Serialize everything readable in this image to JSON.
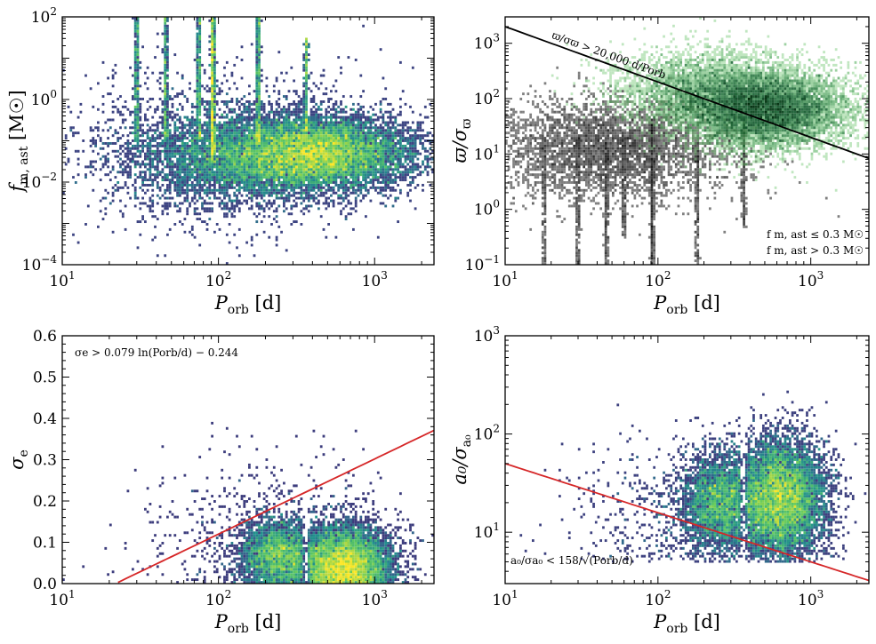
{
  "chart_data": [
    {
      "type": "heatmap",
      "xscale": "log",
      "yscale": "log",
      "xlim": [
        10,
        2400
      ],
      "ylim": [
        0.0001,
        100
      ],
      "xlabel": {
        "base": "P",
        "sub": "orb",
        "tail": " [d]"
      },
      "ylabel": {
        "base": "f",
        "sub": "m, ast",
        "tail": " [M☉]"
      },
      "xticks": [
        {
          "v": 10,
          "label": "10^1"
        },
        {
          "v": 100,
          "label": "10^2"
        },
        {
          "v": 1000,
          "label": "10^3"
        }
      ],
      "yticks": [
        {
          "v": 0.0001,
          "label": "10^-4"
        },
        {
          "v": 0.01,
          "label": "10^-2"
        },
        {
          "v": 1,
          "label": "10^0"
        },
        {
          "v": 100,
          "label": "10^2"
        }
      ],
      "colormap": "viridis",
      "density_components": [
        {
          "logx": [
            2.65,
            0.3
          ],
          "logy": [
            -1.3,
            0.45
          ],
          "n": 9000,
          "cmap": "viridis"
        },
        {
          "logx": [
            2.1,
            0.35
          ],
          "logy": [
            -1.4,
            0.55
          ],
          "n": 4000,
          "cmap": "viridis"
        },
        {
          "logx": [
            2.0,
            0.5
          ],
          "logy": [
            -1.2,
            1.0
          ],
          "n": 1500,
          "cmap": "viridis"
        }
      ],
      "spikes": [
        {
          "x": 30,
          "logy_range": [
            -1,
            2
          ],
          "n": 350
        },
        {
          "x": 46,
          "logy_range": [
            -1,
            2
          ],
          "n": 350
        },
        {
          "x": 75,
          "logy_range": [
            -1,
            2
          ],
          "n": 350
        },
        {
          "x": 92,
          "logy_range": [
            -1.5,
            2
          ],
          "n": 900
        },
        {
          "x": 180,
          "logy_range": [
            -1,
            2
          ],
          "n": 450
        },
        {
          "x": 365,
          "logy_range": [
            -1,
            1.5
          ],
          "n": 300
        }
      ],
      "lines": [],
      "annotations": []
    },
    {
      "type": "heatmap",
      "xscale": "log",
      "yscale": "log",
      "xlim": [
        10,
        2400
      ],
      "ylim": [
        0.1,
        3000
      ],
      "xlabel": {
        "base": "P",
        "sub": "orb",
        "tail": " [d]"
      },
      "ylabel": {
        "base": "ϖ/σ",
        "sub": "ϖ",
        "tail": ""
      },
      "xticks": [
        {
          "v": 10,
          "label": "10^1"
        },
        {
          "v": 100,
          "label": "10^2"
        },
        {
          "v": 1000,
          "label": "10^3"
        }
      ],
      "yticks": [
        {
          "v": 0.1,
          "label": "10^-1"
        },
        {
          "v": 1,
          "label": "10^0"
        },
        {
          "v": 10,
          "label": "10^1"
        },
        {
          "v": 100,
          "label": "10^2"
        },
        {
          "v": 1000,
          "label": "10^3"
        }
      ],
      "density_components": [
        {
          "logx": [
            1.7,
            0.4
          ],
          "logy": [
            1.1,
            0.45
          ],
          "n": 4000,
          "cmap": "grays"
        },
        {
          "logx": [
            2.7,
            0.28
          ],
          "logy": [
            1.8,
            0.35
          ],
          "n": 9000,
          "cmap": "greens"
        },
        {
          "logx": [
            2.3,
            0.3
          ],
          "logy": [
            2.2,
            0.35
          ],
          "n": 3000,
          "cmap": "greens"
        }
      ],
      "spikes": [
        {
          "x": 18,
          "logy_range": [
            -1,
            1.3
          ],
          "n": 150,
          "cmap": "grays"
        },
        {
          "x": 30,
          "logy_range": [
            -1,
            1.3
          ],
          "n": 200,
          "cmap": "grays"
        },
        {
          "x": 46,
          "logy_range": [
            -1,
            1.3
          ],
          "n": 200,
          "cmap": "grays"
        },
        {
          "x": 60,
          "logy_range": [
            -0.5,
            1.3
          ],
          "n": 150,
          "cmap": "grays"
        },
        {
          "x": 92,
          "logy_range": [
            -1,
            1.6
          ],
          "n": 400,
          "cmap": "grays"
        },
        {
          "x": 180,
          "logy_range": [
            -1,
            1.3
          ],
          "n": 200,
          "cmap": "grays"
        },
        {
          "x": 365,
          "logy_range": [
            -0.3,
            1.6
          ],
          "n": 200,
          "cmap": "grays"
        }
      ],
      "lines": [
        {
          "formula": "20000/P",
          "color": "#000000"
        }
      ],
      "annotations": [
        {
          "text": "ϖ/σϖ > 20,000 d/Porb",
          "color": "#000000"
        },
        {
          "text": "f m, ast ≤ 0.3 M☉",
          "color": "#3a9a3a"
        },
        {
          "text": "f m, ast > 0.3 M☉",
          "color": "#666666"
        }
      ],
      "legend": "bottom-right"
    },
    {
      "type": "heatmap",
      "xscale": "log",
      "yscale": "linear",
      "xlim": [
        10,
        2400
      ],
      "ylim": [
        0,
        0.6
      ],
      "xlabel": {
        "base": "P",
        "sub": "orb",
        "tail": " [d]"
      },
      "ylabel": {
        "base": "σ",
        "sub": "e",
        "tail": ""
      },
      "xticks": [
        {
          "v": 10,
          "label": "10^1"
        },
        {
          "v": 100,
          "label": "10^2"
        },
        {
          "v": 1000,
          "label": "10^3"
        }
      ],
      "yticks": [
        {
          "v": 0,
          "label": "0.0"
        },
        {
          "v": 0.1,
          "label": "0.1"
        },
        {
          "v": 0.2,
          "label": "0.2"
        },
        {
          "v": 0.3,
          "label": "0.3"
        },
        {
          "v": 0.4,
          "label": "0.4"
        },
        {
          "v": 0.5,
          "label": "0.5"
        },
        {
          "v": 0.6,
          "label": "0.6"
        }
      ],
      "density_components": [
        {
          "logx": [
            2.38,
            0.12
          ],
          "y": [
            0.07,
            0.04
          ],
          "n": 3000,
          "cmap": "viridis"
        },
        {
          "logx": [
            2.8,
            0.15
          ],
          "y": [
            0.05,
            0.045
          ],
          "n": 7000,
          "cmap": "viridis"
        },
        {
          "logx": [
            2.35,
            0.4
          ],
          "y": [
            0.1,
            0.1
          ],
          "n": 800,
          "cmap": "viridis"
        }
      ],
      "spikes": [],
      "lines": [
        {
          "formula": "0.079*ln(P)-0.244",
          "color": "#d62728"
        }
      ],
      "annotations": [
        {
          "text": "σe > 0.079 ln(Porb/d) − 0.244",
          "color": "#d62728"
        }
      ]
    },
    {
      "type": "heatmap",
      "xscale": "log",
      "yscale": "log",
      "xlim": [
        10,
        2400
      ],
      "ylim": [
        3,
        1000
      ],
      "xlabel": {
        "base": "P",
        "sub": "orb",
        "tail": " [d]"
      },
      "ylabel": {
        "base": "a₀/σ",
        "sub": "a₀",
        "tail": ""
      },
      "xticks": [
        {
          "v": 10,
          "label": "10^1"
        },
        {
          "v": 100,
          "label": "10^2"
        },
        {
          "v": 1000,
          "label": "10^3"
        }
      ],
      "yticks": [
        {
          "v": 10,
          "label": "10^1"
        },
        {
          "v": 100,
          "label": "10^2"
        },
        {
          "v": 1000,
          "label": "10^3"
        }
      ],
      "density_components": [
        {
          "logx": [
            2.4,
            0.12
          ],
          "logy": [
            1.3,
            0.25
          ],
          "n": 3000,
          "cmap": "viridis"
        },
        {
          "logx": [
            2.8,
            0.15
          ],
          "logy": [
            1.35,
            0.3
          ],
          "n": 8000,
          "cmap": "viridis"
        },
        {
          "logx": [
            2.2,
            0.35
          ],
          "logy": [
            1.1,
            0.4
          ],
          "n": 800,
          "cmap": "viridis"
        }
      ],
      "spikes": [],
      "lines": [
        {
          "formula": "158/sqrt(P)",
          "color": "#d62728"
        }
      ],
      "annotations": [
        {
          "text": "a₀/σa₀ < 158/√(Porb/d)",
          "color": "#d62728"
        }
      ]
    }
  ]
}
